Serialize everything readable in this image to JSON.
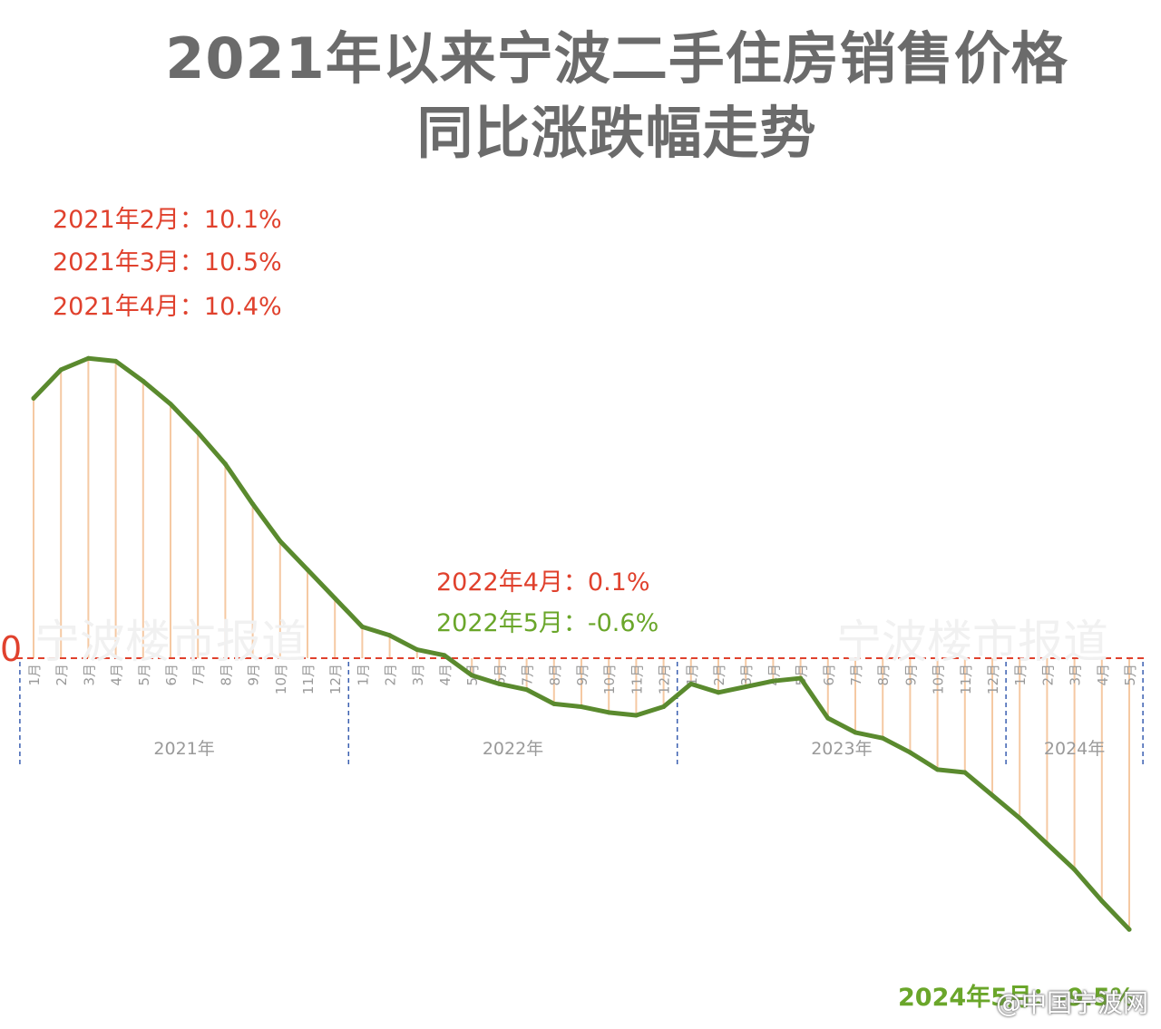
{
  "title_line1": "2021年以来宁波二手住房销售价格",
  "title_line2": "同比涨跌幅走势",
  "zero_label": "0",
  "watermark": "宁波楼市报道",
  "weibo_mark": "@中国宁波网",
  "annotations": {
    "a1": "2021年2月：10.1%",
    "a2": "2021年3月：10.5%",
    "a3": "2021年4月：10.4%",
    "a4": "2022年4月：0.1%",
    "a5": "2022年5月：-0.6%",
    "a6": "2024年5月：-9.5%"
  },
  "colors": {
    "line": "#5a8a2e",
    "drop": "#f5c9a3",
    "zero": "#e0412d",
    "divider": "#3a5fb0",
    "axis_text": "#9a9a9a",
    "annot_red": "#e0412d",
    "annot_green": "#6aa62a"
  },
  "chart_data": {
    "type": "line",
    "title": "2021年以来宁波二手住房销售价格 同比涨跌幅走势",
    "unit": "%",
    "ylim": [
      -10,
      11.5
    ],
    "grid": false,
    "years": [
      {
        "label": "2021年",
        "months": [
          "1月",
          "2月",
          "3月",
          "4月",
          "5月",
          "6月",
          "7月",
          "8月",
          "9月",
          "10月",
          "11月",
          "12月"
        ]
      },
      {
        "label": "2022年",
        "months": [
          "1月",
          "2月",
          "3月",
          "4月",
          "5月",
          "6月",
          "7月",
          "8月",
          "9月",
          "10月",
          "11月",
          "12月"
        ]
      },
      {
        "label": "2023年",
        "months": [
          "1月",
          "2月",
          "3月",
          "4月",
          "5月",
          "6月",
          "7月",
          "8月",
          "9月",
          "10月",
          "11月",
          "12月"
        ]
      },
      {
        "label": "2024年",
        "months": [
          "1月",
          "2月",
          "3月",
          "4月",
          "5月"
        ]
      }
    ],
    "series": [
      {
        "values": [
          9.1,
          10.1,
          10.5,
          10.4,
          9.7,
          8.9,
          7.9,
          6.8,
          5.4,
          4.1,
          3.1,
          2.1,
          1.1,
          0.8,
          0.3,
          0.1,
          -0.6,
          -0.9,
          -1.1,
          -1.6,
          -1.7,
          -1.9,
          -2.0,
          -1.7,
          -0.9,
          -1.2,
          -1.0,
          -0.8,
          -0.7,
          -2.1,
          -2.6,
          -2.8,
          -3.3,
          -3.9,
          -4.0,
          -4.8,
          -5.6,
          -6.5,
          -7.4,
          -8.5,
          -9.5
        ]
      }
    ]
  }
}
